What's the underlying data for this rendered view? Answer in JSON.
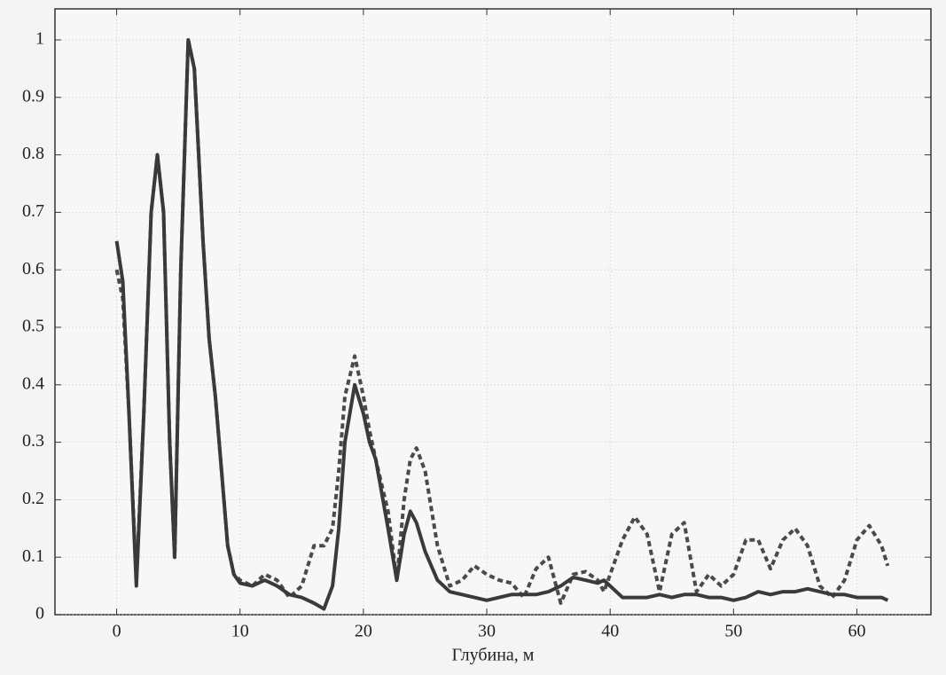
{
  "chart_data": {
    "type": "line",
    "xlabel": "Глубина, м",
    "xlim": [
      -5,
      66
    ],
    "ylim": [
      0,
      1.054
    ],
    "xticks": [
      0,
      10,
      20,
      30,
      40,
      50,
      60
    ],
    "yticks": [
      0,
      0.1,
      0.2,
      0.3,
      0.4,
      0.5,
      0.6,
      0.7,
      0.8,
      0.9,
      1
    ],
    "grid": true,
    "x": [
      0,
      0.5,
      1,
      1.6,
      2.2,
      2.8,
      3.3,
      3.8,
      4.3,
      4.7,
      5.2,
      5.8,
      6.3,
      7,
      7.5,
      8,
      8.5,
      9,
      9.5,
      10,
      11,
      12,
      13,
      14,
      15,
      16,
      16.8,
      17.5,
      18,
      18.5,
      19.3,
      20,
      20.5,
      21,
      22,
      22.7,
      23.3,
      23.8,
      24.3,
      25,
      26,
      27,
      28,
      29,
      30,
      31,
      32,
      33,
      34,
      35,
      36,
      37,
      38,
      39,
      39.5,
      40,
      41,
      42,
      43,
      44,
      45,
      46,
      47,
      48,
      49,
      50,
      51,
      52,
      53,
      54,
      55,
      56,
      57,
      58,
      59,
      60,
      61,
      62,
      62.5
    ],
    "series": [
      {
        "color": "#3a3a3a",
        "linestyle": "solid",
        "values": [
          0.65,
          0.58,
          0.35,
          0.05,
          0.35,
          0.7,
          0.8,
          0.7,
          0.3,
          0.1,
          0.6,
          1.0,
          0.95,
          0.65,
          0.48,
          0.38,
          0.25,
          0.12,
          0.07,
          0.055,
          0.05,
          0.06,
          0.05,
          0.035,
          0.03,
          0.02,
          0.01,
          0.05,
          0.15,
          0.3,
          0.4,
          0.35,
          0.3,
          0.27,
          0.15,
          0.06,
          0.14,
          0.18,
          0.16,
          0.11,
          0.06,
          0.04,
          0.035,
          0.03,
          0.025,
          0.03,
          0.035,
          0.035,
          0.035,
          0.04,
          0.05,
          0.065,
          0.06,
          0.055,
          0.06,
          0.05,
          0.03,
          0.03,
          0.03,
          0.035,
          0.03,
          0.035,
          0.035,
          0.03,
          0.03,
          0.025,
          0.03,
          0.04,
          0.035,
          0.04,
          0.04,
          0.045,
          0.04,
          0.035,
          0.035,
          0.03,
          0.03,
          0.03,
          0.025
        ]
      },
      {
        "color": "#4a4a4a",
        "linestyle": "dashed",
        "values": [
          0.6,
          0.55,
          0.35,
          0.06,
          0.35,
          0.7,
          0.8,
          0.7,
          0.3,
          0.1,
          0.6,
          1.0,
          0.95,
          0.65,
          0.48,
          0.38,
          0.25,
          0.12,
          0.07,
          0.06,
          0.05,
          0.07,
          0.06,
          0.03,
          0.05,
          0.12,
          0.12,
          0.15,
          0.25,
          0.38,
          0.45,
          0.38,
          0.32,
          0.27,
          0.18,
          0.06,
          0.2,
          0.27,
          0.29,
          0.25,
          0.12,
          0.05,
          0.06,
          0.085,
          0.07,
          0.06,
          0.055,
          0.03,
          0.08,
          0.1,
          0.02,
          0.07,
          0.075,
          0.06,
          0.04,
          0.07,
          0.13,
          0.17,
          0.14,
          0.04,
          0.14,
          0.16,
          0.04,
          0.07,
          0.05,
          0.07,
          0.13,
          0.13,
          0.08,
          0.13,
          0.15,
          0.12,
          0.05,
          0.03,
          0.06,
          0.13,
          0.155,
          0.12,
          0.085
        ]
      }
    ]
  }
}
